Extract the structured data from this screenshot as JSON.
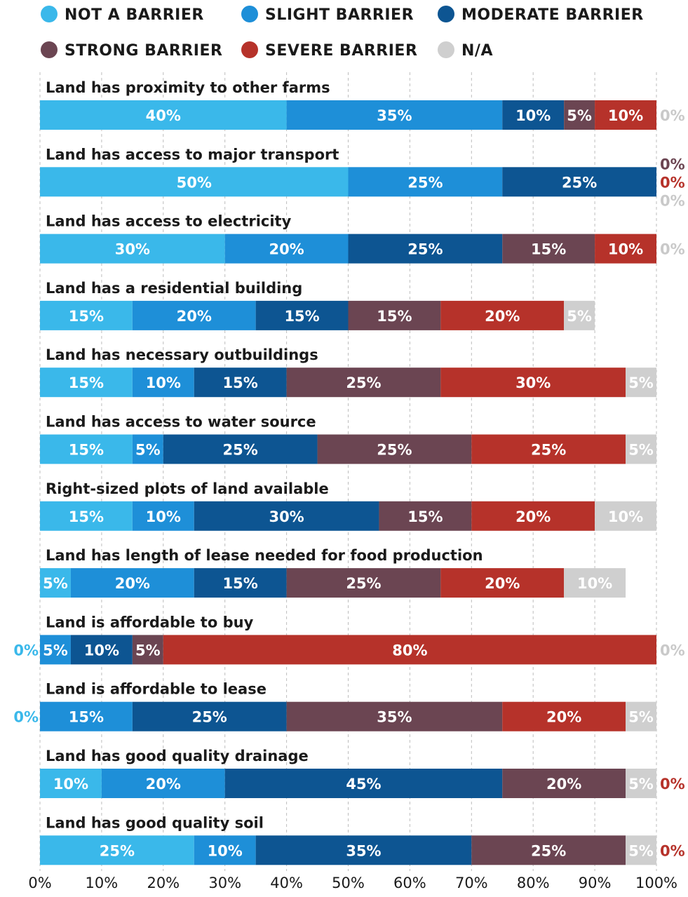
{
  "chart_data": {
    "type": "bar",
    "orientation": "horizontal",
    "stacked": true,
    "normalized": true,
    "title": "",
    "xlabel": "",
    "ylabel": "",
    "xlim": [
      0,
      100
    ],
    "grid": true,
    "legend_position": "top",
    "x_ticks": [
      "0%",
      "10%",
      "20%",
      "30%",
      "40%",
      "50%",
      "60%",
      "70%",
      "80%",
      "90%",
      "100%"
    ],
    "categories": [
      "Land has proximity to other farms",
      "Land has access to major  transport",
      "Land has access to electricity",
      "Land has a residential building",
      "Land has necessary outbuildings",
      "Land has access to water source",
      "Right-sized plots of land available",
      "Land has length of lease needed for food production",
      "Land is affordable to buy",
      "Land is affordable to lease",
      "Land has good quality drainage",
      "Land has good quality soil"
    ],
    "series": [
      {
        "name": "NOT A BARRIER",
        "color": "#3ab8ea",
        "values": [
          40,
          50,
          30,
          15,
          15,
          15,
          15,
          5,
          0,
          0,
          10,
          25
        ]
      },
      {
        "name": "SLIGHT BARRIER",
        "color": "#1e8fd8",
        "values": [
          35,
          25,
          20,
          20,
          10,
          5,
          10,
          20,
          5,
          15,
          20,
          10
        ]
      },
      {
        "name": "MODERATE BARRIER",
        "color": "#0d5592",
        "values": [
          10,
          25,
          25,
          15,
          15,
          25,
          30,
          15,
          10,
          25,
          45,
          35
        ]
      },
      {
        "name": "STRONG BARRIER",
        "color": "#6b4552",
        "values": [
          5,
          0,
          15,
          15,
          25,
          25,
          15,
          25,
          5,
          35,
          20,
          25
        ]
      },
      {
        "name": "SEVERE BARRIER",
        "color": "#b6322a",
        "values": [
          10,
          0,
          10,
          20,
          30,
          25,
          20,
          20,
          80,
          20,
          0,
          0
        ]
      },
      {
        "name": "N/A",
        "color": "#cfcfcf",
        "values": [
          0,
          0,
          0,
          5,
          5,
          5,
          10,
          10,
          0,
          5,
          5,
          5
        ]
      }
    ]
  }
}
